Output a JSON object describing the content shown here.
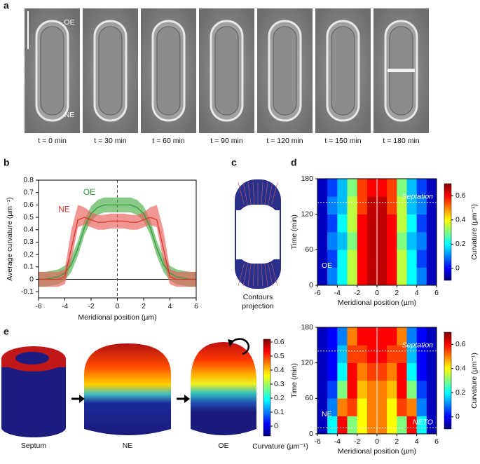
{
  "panel_letters": [
    "a",
    "b",
    "c",
    "d",
    "e"
  ],
  "panel_a": {
    "labels": [
      "t = 0 min",
      "t = 30 min",
      "t = 60 min",
      "t = 90 min",
      "t = 120 min",
      "t = 150 min",
      "t = 180 min"
    ],
    "annotations": [
      "OE",
      "NE"
    ]
  },
  "chart_data": [
    {
      "type": "line",
      "ylabel": "Average curvature (µm⁻¹)",
      "xlabel": "Meridional position (µm)",
      "x": [
        -6,
        -5.5,
        -5,
        -4.5,
        -4,
        -3.5,
        -3,
        -2.5,
        -2,
        -1.5,
        -1,
        -0.5,
        0,
        0.5,
        1,
        1.5,
        2,
        2.5,
        3,
        3.5,
        4,
        4.5,
        5,
        5.5,
        6
      ],
      "xlim": [
        -6,
        6
      ],
      "xticks": [
        -6,
        -4,
        -2,
        0,
        2,
        4,
        6
      ],
      "ylim": [
        -0.15,
        0.8
      ],
      "yticks": [
        -0.1,
        0,
        0.1,
        0.2,
        0.3,
        0.4,
        0.5,
        0.6,
        0.7,
        0.8
      ],
      "series": [
        {
          "name": "OE",
          "color": "#2f9a3a",
          "band_color": "#4aae4a",
          "values": [
            0,
            0,
            0.01,
            0.02,
            0.05,
            0.12,
            0.25,
            0.42,
            0.53,
            0.58,
            0.6,
            0.6,
            0.6,
            0.6,
            0.6,
            0.58,
            0.53,
            0.42,
            0.25,
            0.12,
            0.05,
            0.02,
            0.01,
            0,
            0
          ],
          "lower": [
            -0.06,
            -0.06,
            -0.05,
            -0.04,
            -0.01,
            0.06,
            0.19,
            0.36,
            0.47,
            0.52,
            0.54,
            0.54,
            0.54,
            0.54,
            0.54,
            0.52,
            0.47,
            0.36,
            0.19,
            0.06,
            -0.01,
            -0.04,
            -0.05,
            -0.06,
            -0.06
          ],
          "upper": [
            0.06,
            0.06,
            0.07,
            0.08,
            0.11,
            0.18,
            0.31,
            0.48,
            0.59,
            0.64,
            0.66,
            0.66,
            0.66,
            0.66,
            0.66,
            0.64,
            0.59,
            0.48,
            0.31,
            0.18,
            0.11,
            0.08,
            0.07,
            0.06,
            0.06
          ]
        },
        {
          "name": "NE",
          "color": "#d9352c",
          "band_color": "#e8605a",
          "values": [
            0,
            0,
            0,
            0,
            0.02,
            0.25,
            0.48,
            0.5,
            0.48,
            0.46,
            0.46,
            0.47,
            0.47,
            0.47,
            0.46,
            0.46,
            0.48,
            0.5,
            0.48,
            0.25,
            0.02,
            0,
            0,
            0,
            0
          ],
          "lower": [
            -0.06,
            -0.06,
            -0.06,
            -0.06,
            -0.04,
            0.15,
            0.42,
            0.44,
            0.42,
            0.4,
            0.4,
            0.41,
            0.41,
            0.41,
            0.4,
            0.4,
            0.42,
            0.44,
            0.42,
            0.15,
            -0.04,
            -0.06,
            -0.06,
            -0.06,
            -0.06
          ],
          "upper": [
            0.06,
            0.06,
            0.06,
            0.06,
            0.08,
            0.4,
            0.6,
            0.58,
            0.54,
            0.52,
            0.52,
            0.53,
            0.53,
            0.53,
            0.52,
            0.52,
            0.54,
            0.58,
            0.6,
            0.4,
            0.08,
            0.06,
            0.06,
            0.06,
            0.06
          ]
        }
      ]
    },
    {
      "type": "heatmap",
      "ylabel": "Time (min)",
      "xlabel": "Meridional position (µm)",
      "xbins": [
        -6,
        -5,
        -4,
        -3,
        -2,
        -1,
        0,
        1,
        2,
        3,
        4,
        5,
        6
      ],
      "ybins": [
        0,
        30,
        60,
        90,
        120,
        150,
        180
      ],
      "values": [
        [
          -0.05,
          0.1,
          0.2,
          0.35,
          0.6,
          0.65,
          0.65,
          0.6,
          0.35,
          0.2,
          0.1,
          -0.05
        ],
        [
          -0.05,
          0.05,
          0.2,
          0.35,
          0.6,
          0.65,
          0.65,
          0.6,
          0.35,
          0.2,
          0.05,
          -0.05
        ],
        [
          -0.05,
          0.1,
          0.15,
          0.3,
          0.6,
          0.65,
          0.65,
          0.6,
          0.3,
          0.15,
          0.1,
          -0.05
        ],
        [
          -0.05,
          0.05,
          0.2,
          0.35,
          0.6,
          0.65,
          0.65,
          0.6,
          0.35,
          0.2,
          0.05,
          -0.05
        ],
        [
          -0.05,
          0.1,
          0.15,
          0.35,
          0.55,
          0.65,
          0.65,
          0.55,
          0.35,
          0.15,
          0.1,
          -0.05
        ],
        [
          -0.05,
          0.05,
          0.15,
          0.3,
          0.55,
          0.6,
          0.6,
          0.55,
          0.3,
          0.15,
          0.05,
          -0.05
        ]
      ],
      "xlim": [
        -6,
        6
      ],
      "xticks": [
        -6,
        -4,
        -2,
        0,
        2,
        4,
        6
      ],
      "ylim": [
        0,
        180
      ],
      "yticks": [
        0,
        60,
        120,
        180
      ],
      "clim": [
        -0.1,
        0.7
      ],
      "cticks": [
        0,
        0.2,
        0.4,
        0.6
      ],
      "colorbar_label": "Curvature (µm⁻¹)",
      "annotations": [
        {
          "text": "Septation",
          "y": 140
        },
        {
          "text": "OE"
        }
      ]
    },
    {
      "type": "heatmap",
      "ylabel": "Time (min)",
      "xlabel": "Meridional position (µm)",
      "xbins": [
        -6,
        -5,
        -4,
        -3,
        -2,
        -1,
        0,
        1,
        2,
        3,
        4,
        5,
        6
      ],
      "ybins": [
        0,
        30,
        60,
        90,
        120,
        150,
        180
      ],
      "values": [
        [
          -0.05,
          0.2,
          0.6,
          0.3,
          0.4,
          0.5,
          0.5,
          0.4,
          0.3,
          0.6,
          0.2,
          -0.05
        ],
        [
          -0.05,
          0.1,
          0.5,
          0.55,
          0.4,
          0.5,
          0.5,
          0.4,
          0.55,
          0.5,
          0.1,
          -0.05
        ],
        [
          -0.05,
          0.05,
          0.3,
          0.6,
          0.45,
          0.5,
          0.5,
          0.45,
          0.6,
          0.3,
          0.05,
          -0.05
        ],
        [
          -0.05,
          0,
          0.2,
          0.6,
          0.5,
          0.55,
          0.55,
          0.5,
          0.6,
          0.2,
          0,
          -0.05
        ],
        [
          -0.05,
          0,
          0.15,
          0.55,
          0.55,
          0.6,
          0.6,
          0.55,
          0.55,
          0.15,
          0,
          -0.05
        ],
        [
          -0.05,
          0,
          0.1,
          0.5,
          0.6,
          0.6,
          0.6,
          0.6,
          0.5,
          0.1,
          0,
          -0.05
        ]
      ],
      "xlim": [
        -6,
        6
      ],
      "xticks": [
        -6,
        -4,
        -2,
        0,
        2,
        4,
        6
      ],
      "ylim": [
        0,
        180
      ],
      "yticks": [
        0,
        60,
        120,
        180
      ],
      "clim": [
        -0.1,
        0.7
      ],
      "cticks": [
        0,
        0.2,
        0.4,
        0.6
      ],
      "colorbar_label": "Curvature (µm⁻¹)",
      "annotations": [
        {
          "text": "Septation",
          "y": 140
        },
        {
          "text": "NETO",
          "y": 10
        },
        {
          "text": "NE"
        }
      ]
    }
  ],
  "panel_c": {
    "caption": [
      "Contours",
      "projection"
    ]
  },
  "panel_e": {
    "labels": [
      "Septum",
      "NE",
      "OE"
    ],
    "clim": [
      -0.07,
      0.62
    ],
    "cticks": [
      0,
      0.1,
      0.2,
      0.3,
      0.4,
      0.5,
      0.6
    ],
    "colorbar_label": "Curvature (µm⁻¹)"
  }
}
